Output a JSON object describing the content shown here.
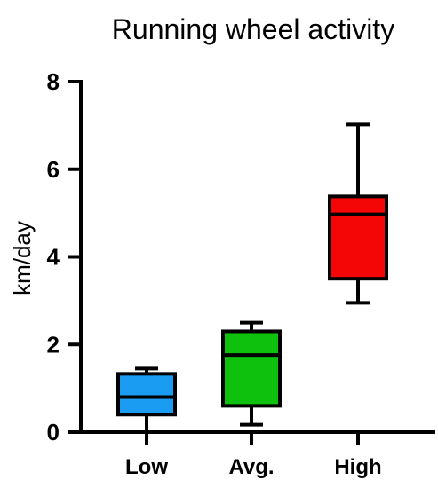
{
  "chart_data": {
    "type": "box",
    "title": "Running wheel activity",
    "ylabel": "km/day",
    "xlabel": "",
    "ylim": [
      0,
      8
    ],
    "yticks": [
      0,
      2,
      4,
      6,
      8
    ],
    "categories": [
      "Low",
      "Avg.",
      "High"
    ],
    "grid": false,
    "legend": "none",
    "boxes": [
      {
        "category": "Low",
        "min": 0.0,
        "q1": 0.4,
        "median": 0.8,
        "q3": 1.33,
        "max": 1.45,
        "color": "#1a9cf2"
      },
      {
        "category": "Avg.",
        "min": 0.17,
        "q1": 0.6,
        "median": 1.76,
        "q3": 2.3,
        "max": 2.5,
        "color": "#0dc10d"
      },
      {
        "category": "High",
        "min": 2.95,
        "q1": 3.5,
        "median": 4.97,
        "q3": 5.38,
        "max": 7.02,
        "color": "#f50606"
      }
    ]
  }
}
